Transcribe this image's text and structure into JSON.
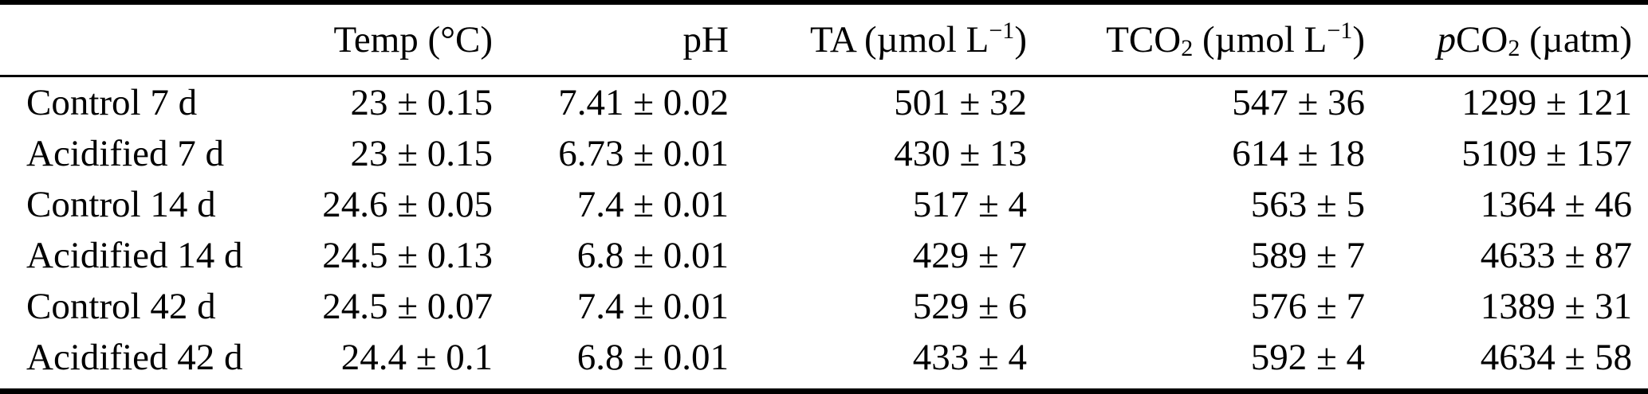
{
  "page": {
    "background_color": "#ffffff",
    "text_color": "#000000",
    "rule_color": "#000000"
  },
  "table": {
    "headers": {
      "row_label": "",
      "temp": "Temp (°C)",
      "ph": "pH",
      "ta": {
        "pre": "TA (µmol L",
        "sup": "−1",
        "post": ")"
      },
      "tco2": {
        "pre": "TCO",
        "sub": "2",
        "mid": " (µmol L",
        "sup": "−1",
        "post": ")"
      },
      "pco2": {
        "italic": "p",
        "pre": "CO",
        "sub": "2",
        "post": " (µatm)"
      }
    },
    "rows": [
      {
        "label": "Control 7 d",
        "temp": "23 ± 0.15",
        "ph": "7.41 ± 0.02",
        "ta": "501 ± 32",
        "tco2": "547 ± 36",
        "pco2": "1299 ± 121"
      },
      {
        "label": "Acidified 7 d",
        "temp": "23 ± 0.15",
        "ph": "6.73 ± 0.01",
        "ta": "430 ± 13",
        "tco2": "614 ± 18",
        "pco2": "5109 ± 157"
      },
      {
        "label": "Control 14 d",
        "temp": "24.6 ± 0.05",
        "ph": "7.4 ± 0.01",
        "ta": "517 ± 4",
        "tco2": "563 ± 5",
        "pco2": "1364 ± 46"
      },
      {
        "label": "Acidified 14 d",
        "temp": "24.5 ± 0.13",
        "ph": "6.8 ± 0.01",
        "ta": "429 ± 7",
        "tco2": "589 ± 7",
        "pco2": "4633 ± 87"
      },
      {
        "label": "Control 42 d",
        "temp": "24.5 ± 0.07",
        "ph": "7.4 ± 0.01",
        "ta": "529 ± 6",
        "tco2": "576 ± 7",
        "pco2": "1389 ± 31"
      },
      {
        "label": "Acidified 42 d",
        "temp": "24.4 ± 0.1",
        "ph": "6.8 ± 0.01",
        "ta": "433 ± 4",
        "tco2": "592 ± 4",
        "pco2": "4634 ± 58"
      }
    ]
  },
  "chart_data": {
    "type": "table",
    "columns": [
      "",
      "Temp (°C)",
      "pH",
      "TA (µmol L⁻¹)",
      "TCO₂ (µmol L⁻¹)",
      "pCO₂ (µatm)"
    ],
    "rows": [
      [
        "Control 7 d",
        "23 ± 0.15",
        "7.41 ± 0.02",
        "501 ± 32",
        "547 ± 36",
        "1299 ± 121"
      ],
      [
        "Acidified 7 d",
        "23 ± 0.15",
        "6.73 ± 0.01",
        "430 ± 13",
        "614 ± 18",
        "5109 ± 157"
      ],
      [
        "Control 14 d",
        "24.6 ± 0.05",
        "7.4 ± 0.01",
        "517 ± 4",
        "563 ± 5",
        "1364 ± 46"
      ],
      [
        "Acidified 14 d",
        "24.5 ± 0.13",
        "6.8 ± 0.01",
        "429 ± 7",
        "589 ± 7",
        "4633 ± 87"
      ],
      [
        "Control 42 d",
        "24.5 ± 0.07",
        "7.4 ± 0.01",
        "529 ± 6",
        "576 ± 7",
        "1389 ± 31"
      ],
      [
        "Acidified 42 d",
        "24.4 ± 0.1",
        "6.8 ± 0.01",
        "433 ± 4",
        "592 ± 4",
        "4634 ± 58"
      ]
    ]
  }
}
